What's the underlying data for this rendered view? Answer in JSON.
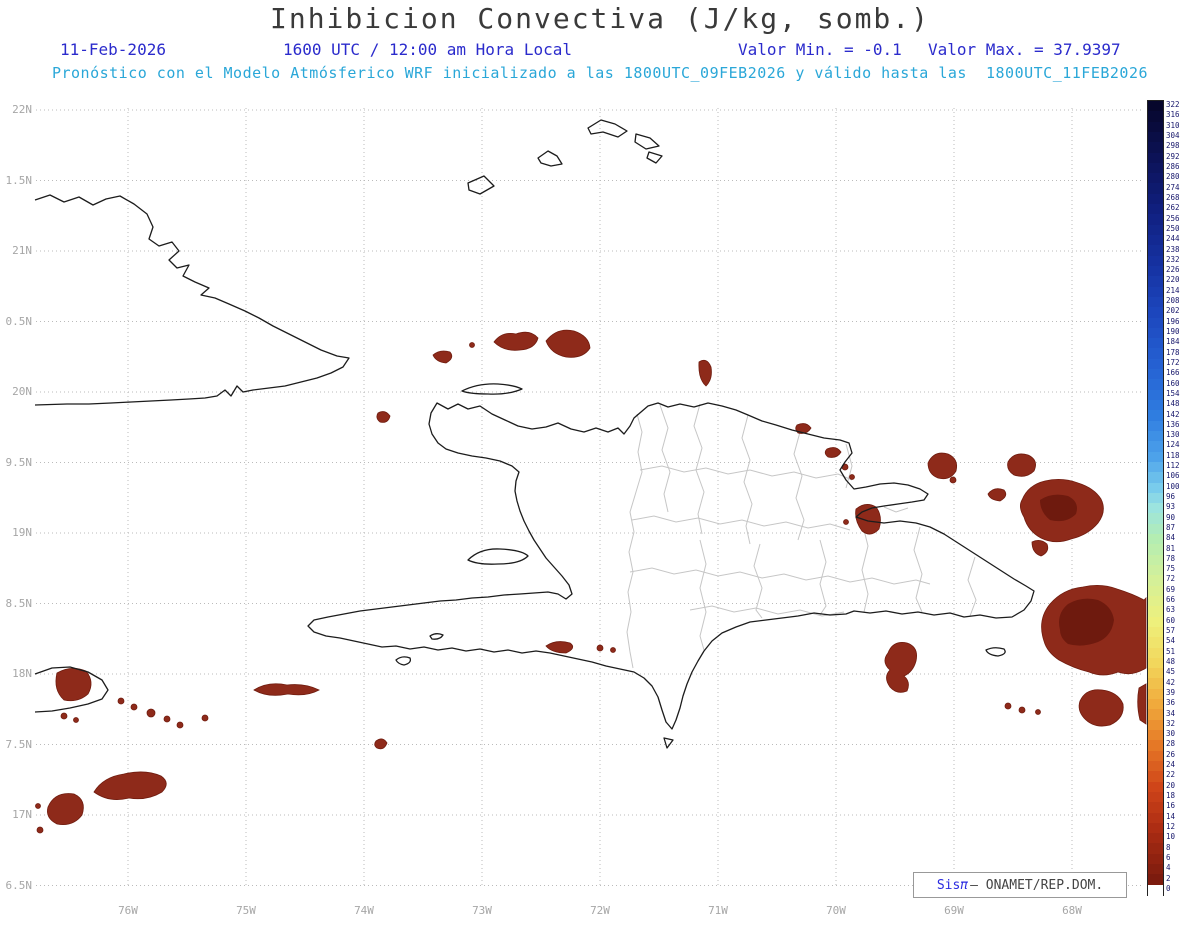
{
  "header": {
    "title": "Inhibicion Convectiva (J/kg, somb.)",
    "date": "11-Feb-2026",
    "time": "1600 UTC / 12:00 am Hora Local",
    "min_label": "Valor Min. = -0.1",
    "max_label": "Valor Max. = 37.9397",
    "forecast_line": "Pronóstico con el Modelo Atmósferico WRF inicializado a las 1800UTC_09FEB2026 y válido hasta las  1800UTC_11FEB2026"
  },
  "axes": {
    "y_ticks": [
      "22N",
      "1.5N",
      "21N",
      "0.5N",
      "20N",
      "9.5N",
      "19N",
      "8.5N",
      "18N",
      "7.5N",
      "17N",
      "6.5N"
    ],
    "x_ticks": [
      "76W",
      "75W",
      "74W",
      "73W",
      "72W",
      "71W",
      "70W",
      "69W",
      "68W"
    ]
  },
  "colorbar": {
    "ticks": [
      322,
      316,
      310,
      304,
      298,
      292,
      286,
      280,
      274,
      268,
      262,
      256,
      250,
      244,
      238,
      232,
      226,
      220,
      214,
      208,
      202,
      196,
      190,
      184,
      178,
      172,
      166,
      160,
      154,
      148,
      142,
      136,
      130,
      124,
      118,
      112,
      106,
      100,
      96,
      93,
      90,
      87,
      84,
      81,
      78,
      75,
      72,
      69,
      66,
      63,
      60,
      57,
      54,
      51,
      48,
      45,
      42,
      39,
      36,
      34,
      32,
      30,
      28,
      26,
      24,
      22,
      20,
      18,
      16,
      14,
      12,
      10,
      8,
      6,
      4,
      2,
      0
    ],
    "stops": [
      {
        "i": 0,
        "c": "#07072c"
      },
      {
        "i": 5,
        "c": "#0c1257"
      },
      {
        "i": 10,
        "c": "#101f7e"
      },
      {
        "i": 15,
        "c": "#15309f"
      },
      {
        "i": 20,
        "c": "#1c46bd"
      },
      {
        "i": 25,
        "c": "#2560d2"
      },
      {
        "i": 30,
        "c": "#2f7de0"
      },
      {
        "i": 34,
        "c": "#4da2ea"
      },
      {
        "i": 37,
        "c": "#79ccec"
      },
      {
        "i": 39,
        "c": "#9ce4df"
      },
      {
        "i": 42,
        "c": "#b4edb2"
      },
      {
        "i": 46,
        "c": "#d5f098"
      },
      {
        "i": 50,
        "c": "#eef07c"
      },
      {
        "i": 54,
        "c": "#f2d75c"
      },
      {
        "i": 58,
        "c": "#f0aa3c"
      },
      {
        "i": 62,
        "c": "#e57826"
      },
      {
        "i": 66,
        "c": "#cf4519"
      },
      {
        "i": 70,
        "c": "#ad2d13"
      },
      {
        "i": 75,
        "c": "#7c1b0e"
      },
      {
        "i": 76,
        "c": "#ffffff"
      }
    ]
  },
  "branding": {
    "sis": "Sis",
    "pi": "π",
    "rest": "– ONAMET/REP.DOM."
  },
  "colors": {
    "accent_blue": "#2b2bcc",
    "accent_cyan": "#2aa7d8",
    "title_gray": "#3a3a3a",
    "axis_gray": "#a6a6a6",
    "gridline_gray": "#bbbbbb",
    "province_gray": "#c6c6c6",
    "coast_black": "#1c1c1c",
    "cin_patch_red": "#8e2a1a",
    "cin_patch_dark": "#6e1a0e",
    "colorbar_label_navy": "#16166b"
  },
  "chart_data": {
    "type": "heatmap",
    "title": "Inhibicion Convectiva (J/kg, somb.)",
    "units": "J/kg",
    "value_min": -0.1,
    "value_max": 37.9397,
    "valid_date": "11-Feb-2026",
    "valid_time_utc": "1600 UTC",
    "valid_time_local": "12:00 am Hora Local",
    "model": "WRF",
    "initialized": "1800UTC_09FEB2026",
    "valid_until": "1800UTC_11FEB2026",
    "x_ticks": [
      "76W",
      "75W",
      "74W",
      "73W",
      "72W",
      "71W",
      "70W",
      "69W",
      "68W"
    ],
    "y_ticks": [
      "22N",
      "1.5N",
      "21N",
      "0.5N",
      "20N",
      "9.5N",
      "19N",
      "8.5N",
      "18N",
      "7.5N",
      "17N",
      "6.5N"
    ],
    "colorbar_levels_desc": [
      322,
      316,
      310,
      304,
      298,
      292,
      286,
      280,
      274,
      268,
      262,
      256,
      250,
      244,
      238,
      232,
      226,
      220,
      214,
      208,
      202,
      196,
      190,
      184,
      178,
      172,
      166,
      160,
      154,
      148,
      142,
      136,
      130,
      124,
      118,
      112,
      106,
      100,
      96,
      93,
      90,
      87,
      84,
      81,
      78,
      75,
      72,
      69,
      66,
      63,
      60,
      57,
      54,
      51,
      48,
      45,
      42,
      39,
      36,
      34,
      32,
      30,
      28,
      26,
      24,
      22,
      20,
      18,
      16,
      14,
      12,
      10,
      8,
      6,
      4,
      2,
      0
    ],
    "legend_position": "right",
    "grid": true
  }
}
